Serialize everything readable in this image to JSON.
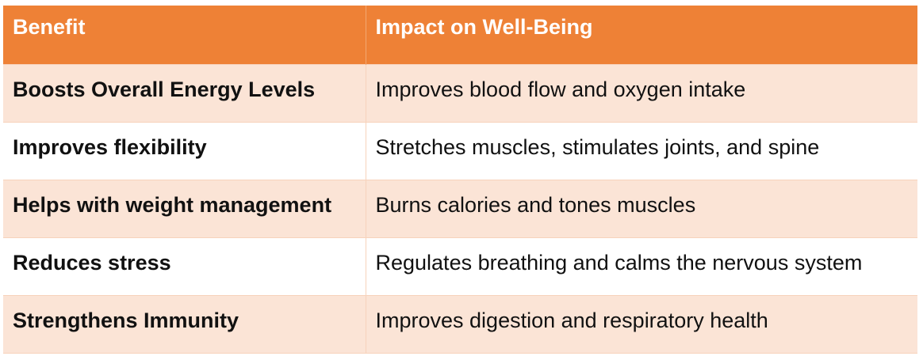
{
  "table": {
    "headers": [
      "Benefit",
      "Impact on Well-Being"
    ],
    "rows": [
      {
        "benefit": "Boosts Overall Energy Levels",
        "impact": "Improves blood flow and oxygen intake"
      },
      {
        "benefit": "Improves flexibility",
        "impact": "Stretches muscles, stimulates joints, and spine"
      },
      {
        "benefit": "Helps with weight management",
        "impact": "Burns calories and tones muscles"
      },
      {
        "benefit": "Reduces stress",
        "impact": "Regulates breathing and calms the nervous system"
      },
      {
        "benefit": "Strengthens Immunity",
        "impact": "Improves digestion and respiratory health"
      }
    ]
  },
  "colors": {
    "header_bg": "#ee8136",
    "header_text": "#ffffff",
    "row_alt_bg": "#fbe4d6",
    "row_bg": "#ffffff"
  }
}
